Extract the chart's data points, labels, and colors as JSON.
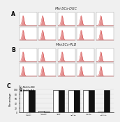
{
  "title_A": "MenSCs-DGC",
  "title_B": "MenSCs-PLB",
  "label_A": "A",
  "label_B": "B",
  "label_C": "C",
  "bg_color": "#f0f0f0",
  "hist_fill_color": "#cc2222",
  "hist_line_color": "#cc2222",
  "hist_bg": "#ffffff",
  "bar_color_dgc": "#ffffff",
  "bar_color_plb": "#111111",
  "bar_edge_dgc": "#000000",
  "bar_edge_plb": "#000000",
  "ylabel_C": "Percentage",
  "ylim_C": [
    0,
    115
  ],
  "yticks_C": [
    0,
    20,
    40,
    60,
    80,
    100
  ],
  "legend_dgc": "MenSCs-DGC",
  "legend_plb": "MenSCs-PLB",
  "bar_xlabels": [
    "isotype\ncontrol",
    "FITC-Iso\ncontrol",
    "CD29-\nFITC",
    "HLA-\nABC-PE",
    "HLA-A-\nB-C-PE",
    "HLA-A-\nB-C-APC"
  ],
  "bar_vals_dgc": [
    98.5,
    5.2,
    97.8,
    97.2,
    97.5,
    4.5
  ],
  "bar_vals_plb": [
    98.2,
    4.8,
    98.0,
    97.8,
    97.6,
    96.8
  ]
}
